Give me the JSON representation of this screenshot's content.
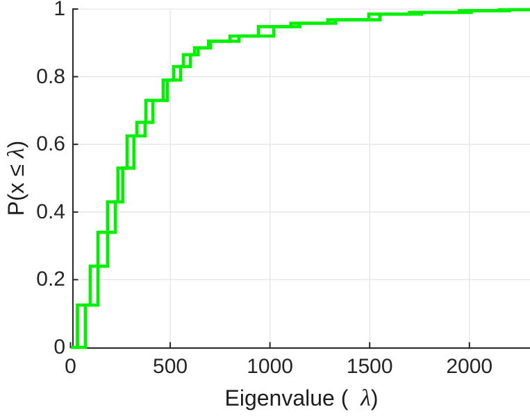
{
  "figure": {
    "background": "#ffffff",
    "description": "Empirical cumulative distribution of eigenvalues"
  },
  "chart_data": {
    "type": "line",
    "subtype": "ecdf-stairs",
    "title": "",
    "xlabel": "Eigenvalue ( λ)",
    "xlabel_prefix": "Eigenvalue (  ",
    "xlabel_lambda": "λ",
    "xlabel_suffix": ")",
    "ylabel": "P(x ≤ λ)",
    "ylabel_prefix": "P(x ≤ ",
    "ylabel_lambda": "λ",
    "ylabel_suffix": ")",
    "xlim": [
      0,
      2300
    ],
    "ylim": [
      0,
      1
    ],
    "xticks": [
      0,
      500,
      1000,
      1500,
      2000
    ],
    "xtick_labels": [
      "0",
      "500",
      "1000",
      "1500",
      "2000"
    ],
    "yticks": [
      0,
      0.2,
      0.4,
      0.6,
      0.8,
      1
    ],
    "ytick_labels": [
      "0",
      "0.2",
      "0.4",
      "0.6",
      "0.8",
      "1"
    ],
    "grid": true,
    "grid_color": "#e5e5e5",
    "axis_color": "#262626",
    "line_color": "#00f000",
    "legend": null,
    "series": [
      {
        "name": "ecdf-curve-1",
        "start_x": 2,
        "end_x": 2310,
        "steps": [
          [
            35,
            0.125
          ],
          [
            138,
            0.24
          ],
          [
            138,
            0.34
          ],
          [
            225,
            0.43
          ],
          [
            238,
            0.53
          ],
          [
            284,
            0.625
          ],
          [
            333,
            0.665
          ],
          [
            378,
            0.73
          ],
          [
            465,
            0.79
          ],
          [
            517,
            0.83
          ],
          [
            566,
            0.865
          ],
          [
            622,
            0.885
          ],
          [
            692,
            0.905
          ],
          [
            800,
            0.92
          ],
          [
            942,
            0.948
          ],
          [
            1105,
            0.958
          ],
          [
            1290,
            0.968
          ],
          [
            1496,
            0.985
          ],
          [
            1700,
            0.99
          ],
          [
            1950,
            0.995
          ],
          [
            2150,
            0.998
          ]
        ]
      },
      {
        "name": "ecdf-curve-2",
        "start_x": 2,
        "end_x": 2310,
        "steps": [
          [
            75,
            0.125
          ],
          [
            99,
            0.24
          ],
          [
            186,
            0.34
          ],
          [
            186,
            0.43
          ],
          [
            262,
            0.53
          ],
          [
            318,
            0.625
          ],
          [
            374,
            0.665
          ],
          [
            413,
            0.73
          ],
          [
            485,
            0.79
          ],
          [
            552,
            0.83
          ],
          [
            601,
            0.865
          ],
          [
            640,
            0.885
          ],
          [
            702,
            0.905
          ],
          [
            845,
            0.92
          ],
          [
            1019,
            0.948
          ],
          [
            1150,
            0.958
          ],
          [
            1330,
            0.968
          ],
          [
            1552,
            0.985
          ],
          [
            1760,
            0.99
          ],
          [
            2010,
            0.995
          ],
          [
            2200,
            0.998
          ]
        ]
      }
    ]
  }
}
